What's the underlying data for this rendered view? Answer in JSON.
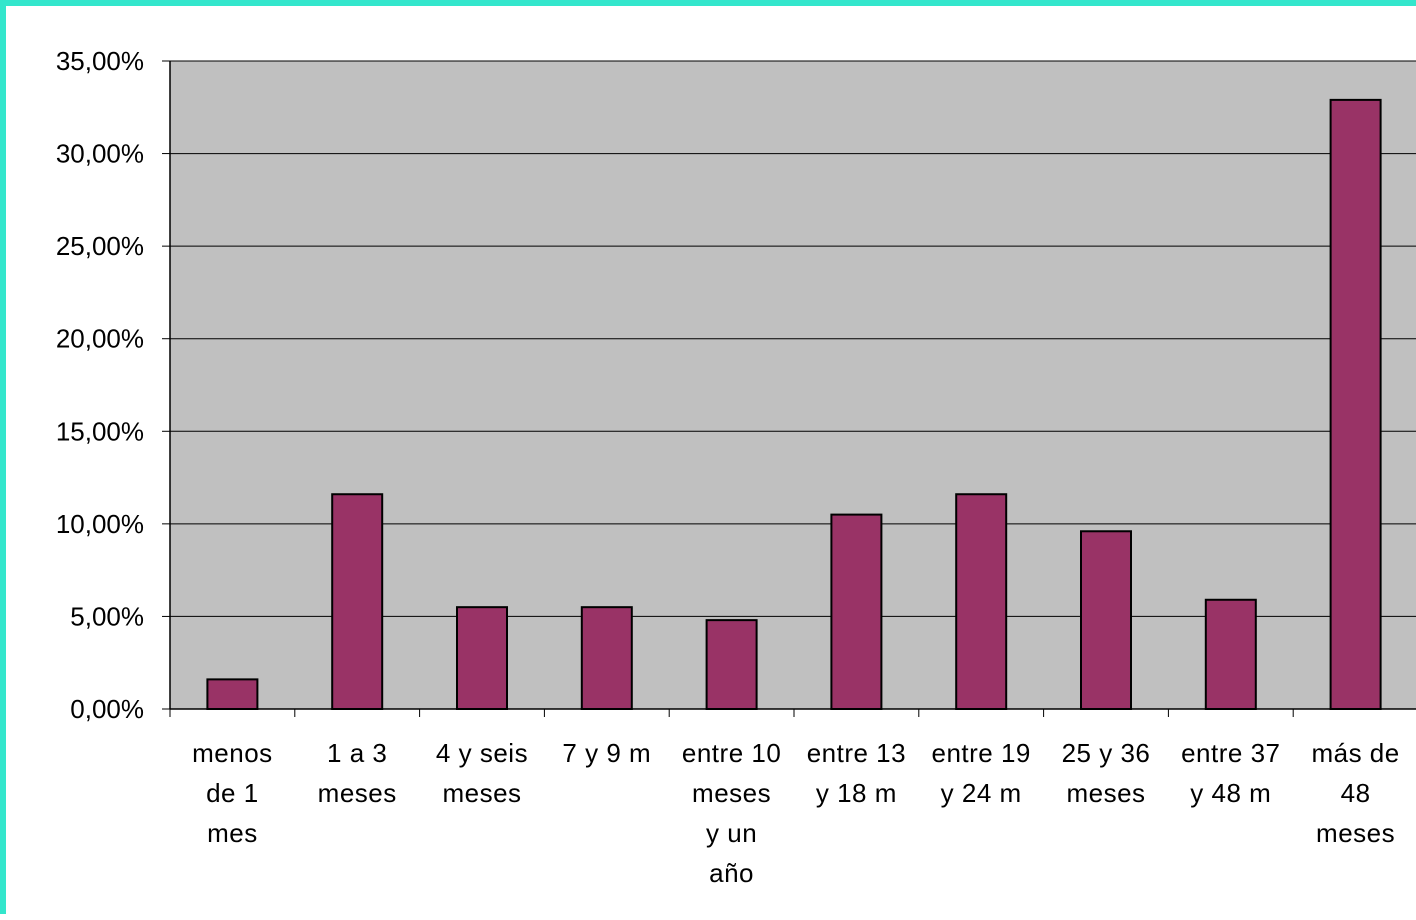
{
  "chart_data": {
    "type": "bar",
    "title": "",
    "xlabel": "",
    "ylabel": "",
    "categories": [
      "menos de 1 mes",
      "1 a 3 meses",
      "4 y seis meses",
      "7 y 9 m",
      "entre 10 meses y un año",
      "entre 13 y 18 m",
      "entre 19 y 24 m",
      "25 y 36 meses",
      "entre 37 y 48 m",
      "más de 48 meses"
    ],
    "category_lines": [
      [
        "menos",
        "de 1",
        "mes"
      ],
      [
        "1 a 3",
        "meses"
      ],
      [
        "4 y seis",
        "meses"
      ],
      [
        "7 y 9 m"
      ],
      [
        "entre 10",
        "meses",
        "y un",
        "año"
      ],
      [
        "entre 13",
        "y 18 m"
      ],
      [
        "entre 19",
        "y 24 m"
      ],
      [
        "25 y 36",
        "meses"
      ],
      [
        "entre 37",
        "y 48 m"
      ],
      [
        "más de",
        "48",
        "meses"
      ]
    ],
    "values": [
      1.6,
      11.6,
      5.5,
      5.5,
      4.8,
      10.5,
      11.6,
      9.6,
      5.9,
      32.9
    ],
    "ylim": [
      0,
      35
    ],
    "yticks": [
      0,
      5,
      10,
      15,
      20,
      25,
      30,
      35
    ],
    "ytick_labels": [
      "0,00%",
      "5,00%",
      "10,00%",
      "15,00%",
      "20,00%",
      "25,00%",
      "30,00%",
      "35,00%"
    ],
    "grid": true,
    "legend": "none",
    "bar_color": "#993366",
    "plot_background": "#c0c0c0",
    "border_color": "#33e6cc"
  }
}
